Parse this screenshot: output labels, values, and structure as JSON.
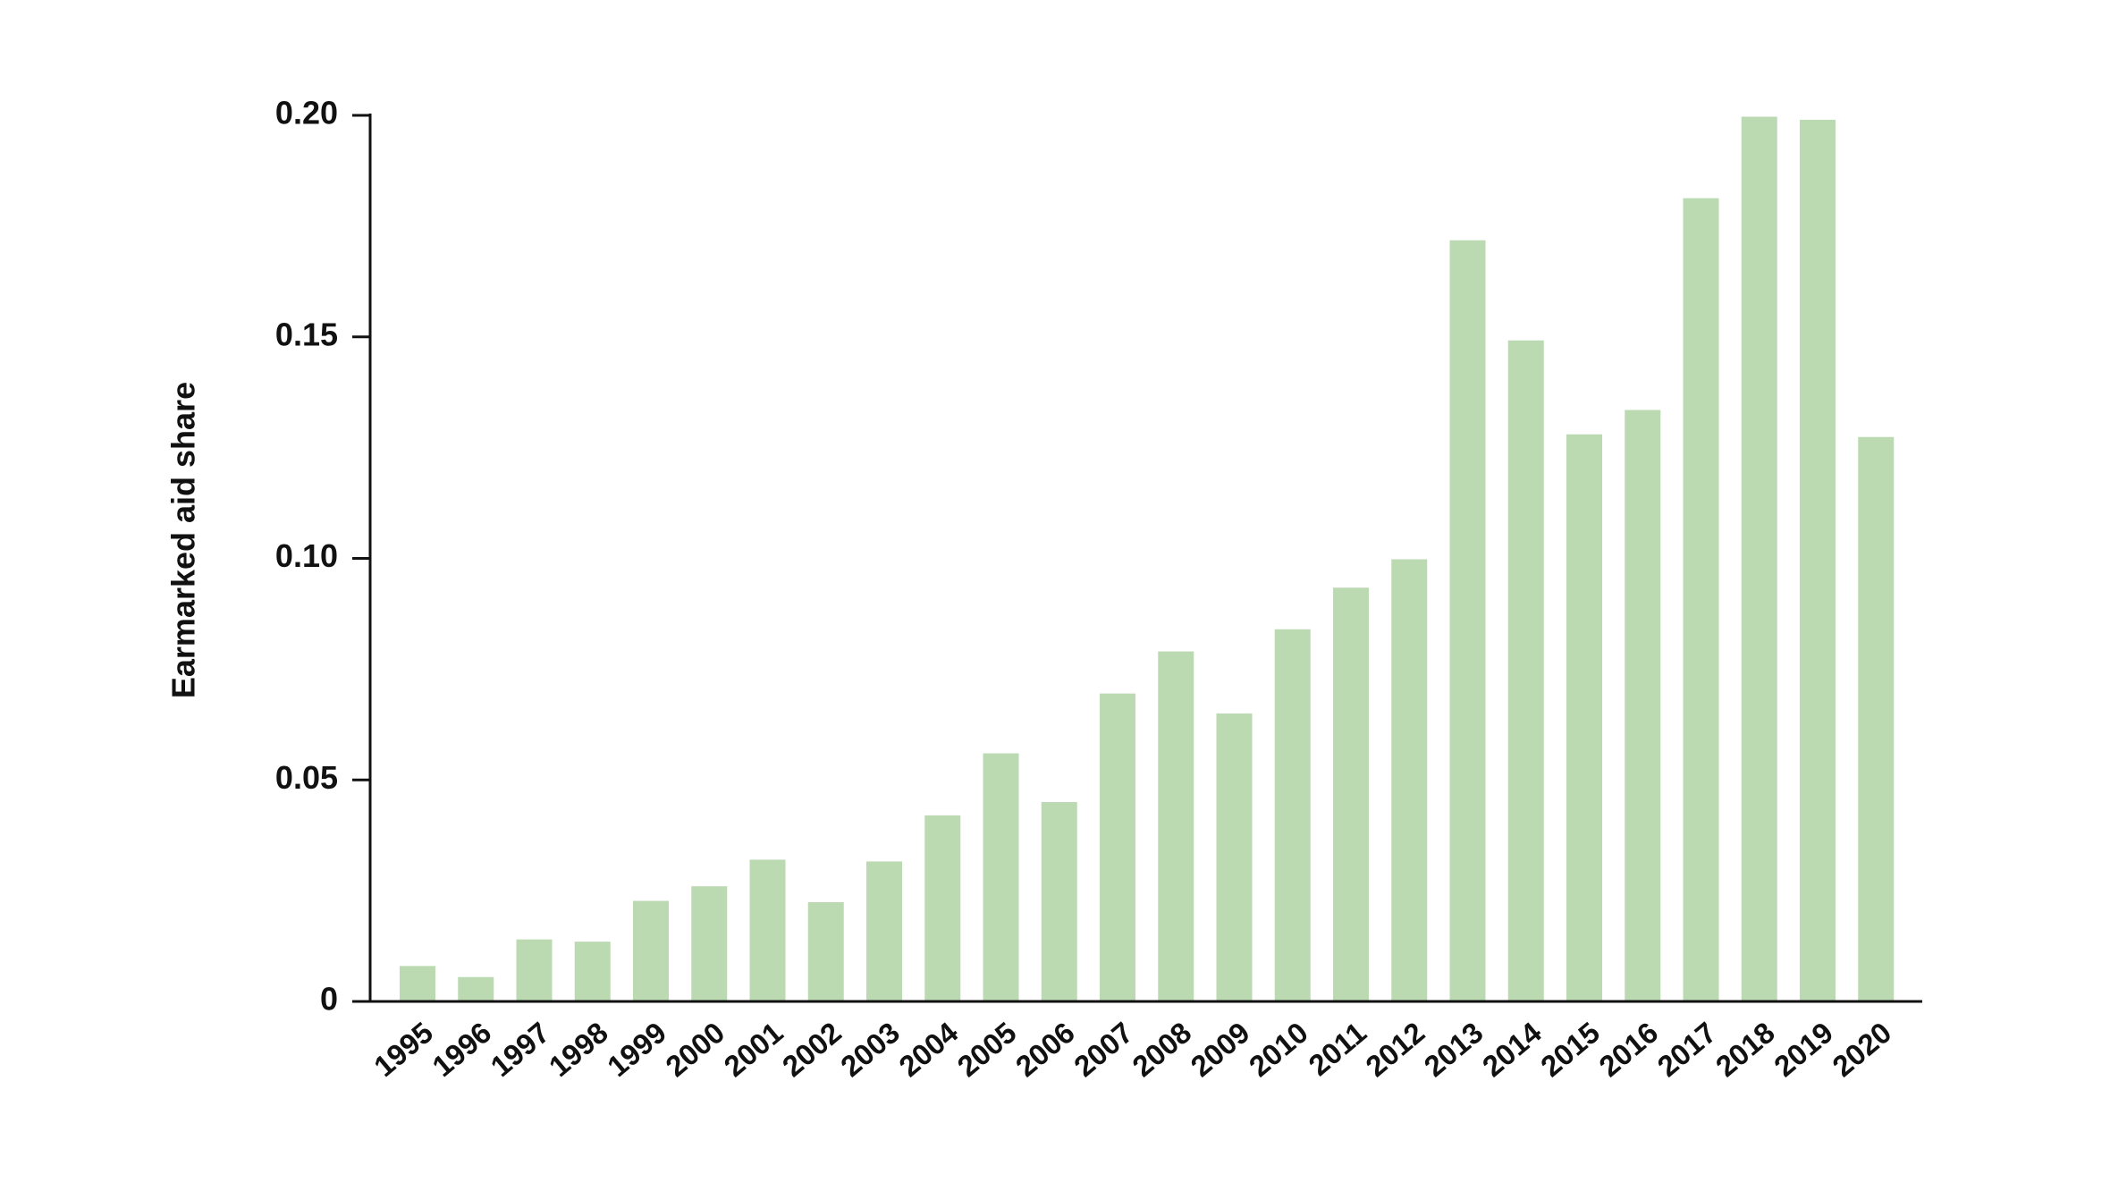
{
  "chart_data": {
    "type": "bar",
    "y_label": "Earmarked aid share",
    "categories": [
      "1995",
      "1996",
      "1997",
      "1998",
      "1999",
      "2000",
      "2001",
      "2002",
      "2003",
      "2004",
      "2005",
      "2006",
      "2007",
      "2008",
      "2009",
      "2010",
      "2011",
      "2012",
      "2013",
      "2014",
      "2015",
      "2016",
      "2017",
      "2018",
      "2019",
      "2020"
    ],
    "values": [
      0.008,
      0.0055,
      0.014,
      0.0135,
      0.0227,
      0.026,
      0.032,
      0.0224,
      0.0316,
      0.042,
      0.056,
      0.045,
      0.0695,
      0.079,
      0.065,
      0.084,
      0.0934,
      0.0998,
      0.1718,
      0.1492,
      0.128,
      0.1335,
      0.1813,
      0.1997,
      0.199,
      0.1274
    ],
    "color": "#bcdab2",
    "ylim": [
      0,
      0.2
    ],
    "yticks": [
      0,
      0.05,
      {
        "value": 0.1,
        "label": "0.10"
      },
      0.15,
      {
        "value": 0.2,
        "label": "0.20"
      }
    ]
  }
}
